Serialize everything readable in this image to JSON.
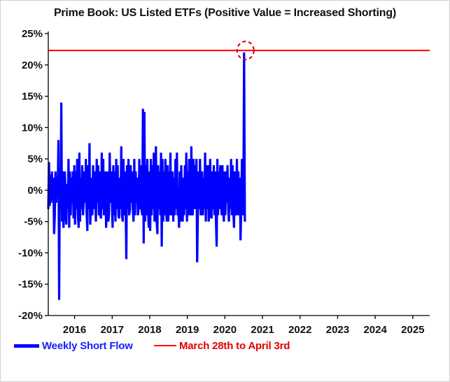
{
  "colors": {
    "flow": "#0000ff",
    "marker": "#ff0000",
    "axis": "#000000"
  },
  "chart_data": {
    "type": "line",
    "title": "Prime Book: US Listed ETFs (Positive Value = Increased Shorting)",
    "xlabel": "",
    "ylabel": "",
    "ylim": [
      -20,
      25
    ],
    "xlim": [
      2015.3,
      2025.45
    ],
    "yticks": [
      25,
      20,
      15,
      10,
      5,
      0,
      -5,
      -10,
      -15,
      -20
    ],
    "ytick_labels": [
      "25%",
      "20%",
      "15%",
      "10%",
      "5%",
      "0%",
      "-5%",
      "-10%",
      "-15%",
      "-20%"
    ],
    "xticks": [
      2016,
      2017,
      2018,
      2019,
      2020,
      2021,
      2022,
      2023,
      2024,
      2025
    ],
    "xtick_labels": [
      "2016",
      "2017",
      "2018",
      "2019",
      "2020",
      "2021",
      "2022",
      "2023",
      "2024",
      "2025"
    ],
    "series": [
      {
        "name": "Weekly Short Flow",
        "color": "#0000ff",
        "start": 2015.3,
        "step": 0.01923,
        "values": [
          -3,
          4.5,
          -2.5,
          2.5,
          -2,
          3,
          -1.5,
          2,
          -7,
          -4,
          3,
          -2,
          2,
          -1,
          8,
          -17.5,
          3,
          -3,
          14,
          -5,
          3,
          -6,
          -4,
          3,
          -2,
          -5.5,
          1,
          -3,
          5,
          -6,
          3,
          -4,
          2,
          -2,
          3,
          -4.5,
          4,
          -5.5,
          3,
          -3,
          5,
          -4,
          -6,
          6,
          -5,
          2,
          -3,
          4,
          -4,
          -2,
          3,
          -2,
          5,
          -3.5,
          -6.5,
          4,
          -3,
          7.5,
          -5.5,
          -3,
          2,
          -4,
          4,
          -3,
          3,
          -2,
          -5,
          5,
          -2,
          4,
          -4,
          3,
          -4,
          -4.5,
          6,
          -3,
          5,
          -4,
          -2,
          3,
          -6,
          -3,
          3,
          -5,
          -4,
          6,
          -2,
          3,
          -2,
          -6,
          4,
          -4,
          3,
          -5,
          5,
          -3,
          4,
          -4,
          -4.5,
          2,
          -3,
          7,
          -4,
          -5,
          5,
          -4,
          3,
          -2,
          -11,
          4,
          -3,
          5,
          -4,
          -3,
          4,
          -2,
          3,
          -3,
          -5,
          5,
          -4,
          3,
          -2,
          2,
          -4,
          -3,
          5,
          -3,
          4,
          -3,
          -4,
          13,
          -8.5,
          12.5,
          -5,
          4,
          -4,
          5,
          -3,
          -6,
          3,
          -6.5,
          5,
          -4,
          4,
          -3,
          6,
          -5,
          -3,
          7,
          -5,
          -7,
          4,
          -3,
          3,
          -4,
          6,
          -9,
          5,
          -5,
          3,
          -4,
          5,
          -3,
          -5,
          4,
          -5,
          3,
          -4,
          6,
          -4,
          -3,
          3,
          -5,
          2,
          -4,
          5,
          -3,
          6,
          -4,
          -3,
          -6,
          3,
          -5,
          4,
          -3,
          -5,
          2,
          -4,
          4,
          -3,
          6,
          -5,
          3,
          -4,
          5,
          -3,
          -4,
          7,
          -3,
          -4,
          5,
          -3,
          4,
          -3,
          5,
          -11.5,
          -4,
          3,
          -3,
          5,
          -4,
          -3,
          3,
          -4,
          2,
          -3,
          6,
          -5,
          4,
          -3,
          4,
          -5,
          -3,
          5,
          -4,
          -4.5,
          3,
          -3,
          4,
          -4,
          3,
          -5,
          -9,
          5,
          -4,
          3,
          -3,
          4,
          -2,
          -4,
          4,
          -3,
          -5,
          3,
          -4,
          3,
          -2,
          4,
          -3,
          -5,
          2,
          -3,
          5,
          -4,
          4,
          -3,
          -6,
          3,
          -3,
          -4,
          5,
          -4,
          3,
          -4,
          2,
          -8,
          -3,
          5,
          -4,
          -2,
          22,
          -5
        ]
      },
      {
        "name": "March 28th to April 3rd",
        "color": "#ff0000",
        "value": 22.3
      }
    ],
    "annotation": "dashed red circle around latest weekly value",
    "legend_position": "bottom-left"
  }
}
